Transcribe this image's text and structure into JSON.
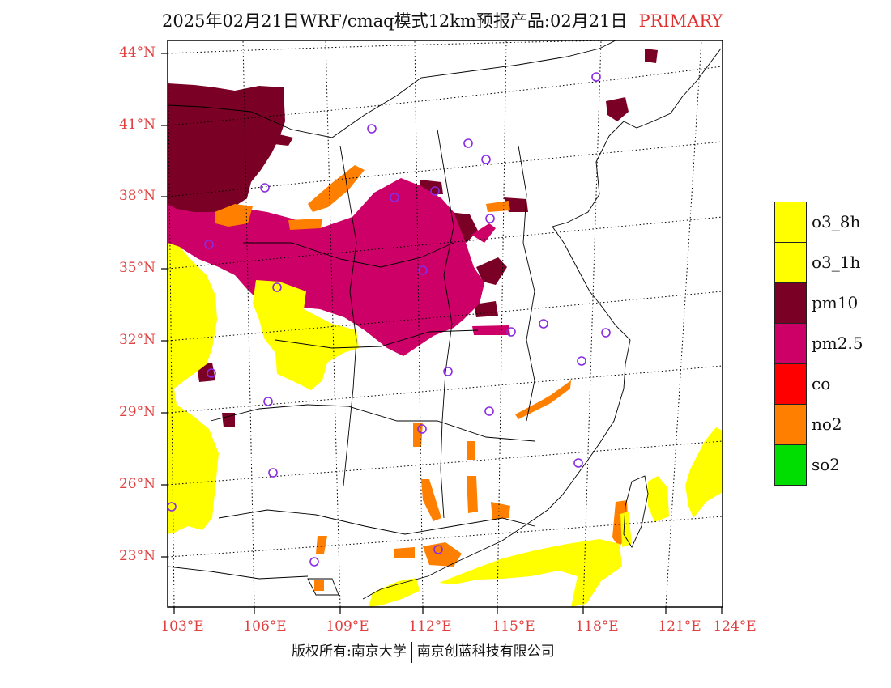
{
  "title": {
    "text": "2025年02月21日WRF/cmaq模式12km预报产品:02月21日",
    "tag": "PRIMARY"
  },
  "axes": {
    "lat_labels": [
      "44°N",
      "41°N",
      "38°N",
      "35°N",
      "32°N",
      "29°N",
      "26°N",
      "23°N"
    ],
    "lon_labels": [
      "103°E",
      "106°E",
      "109°E",
      "112°E",
      "115°E",
      "118°E",
      "121°E",
      "124°E"
    ]
  },
  "legend": [
    {
      "label": "o3_8h",
      "color": "#ffff00"
    },
    {
      "label": "o3_1h",
      "color": "#ffff00"
    },
    {
      "label": "pm10",
      "color": "#7a0026"
    },
    {
      "label": "pm2.5",
      "color": "#cc0066"
    },
    {
      "label": "co",
      "color": "#ff0000"
    },
    {
      "label": "no2",
      "color": "#ff7f00"
    },
    {
      "label": "so2",
      "color": "#00dd00"
    }
  ],
  "colors": {
    "axis_label": "#e04040",
    "station_marker": "#8a2be2"
  },
  "footer": {
    "left": "版权所有:南京大学",
    "right": "南京创蓝科技有限公司"
  }
}
